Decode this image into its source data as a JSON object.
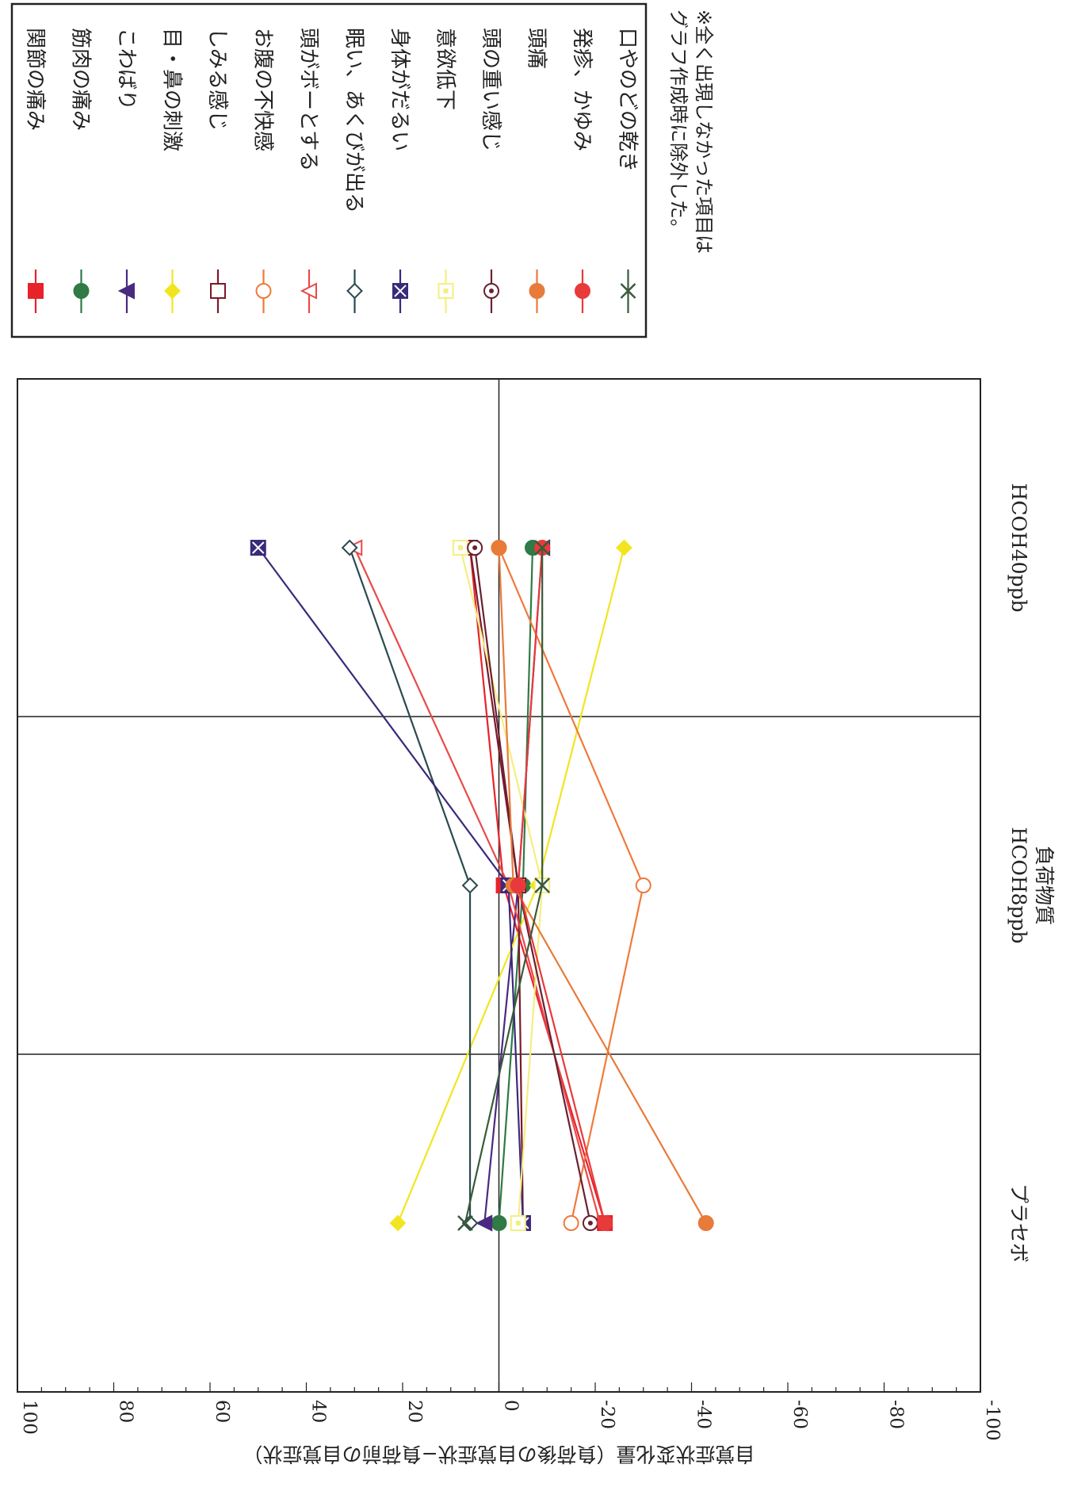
{
  "chart_data": {
    "type": "line",
    "orientation": "rotated-90",
    "categories": [
      "プラセボ",
      "HCOH8ppb",
      "HCOH40ppb"
    ],
    "xlabel": "負荷物質",
    "ylabel": "自覚症状変化量（負荷後の自覚症状−負荷前の自覚症状）",
    "ylim": [
      -100,
      100
    ],
    "yticks": [
      100,
      80,
      60,
      40,
      20,
      0,
      -20,
      -40,
      -60,
      -80,
      -100
    ],
    "grid": true,
    "legend_position": "top-right",
    "series": [
      {
        "name": "関節の痛み",
        "values": [
          -22,
          -1,
          6
        ],
        "color": "#e8222a",
        "marker": "square-filled"
      },
      {
        "name": "筋肉の痛み",
        "values": [
          0,
          -5,
          -7
        ],
        "color": "#2f7a45",
        "marker": "circle-filled"
      },
      {
        "name": "こわばり",
        "values": [
          3,
          -4,
          -9
        ],
        "color": "#4a2a80",
        "marker": "triangle-filled"
      },
      {
        "name": "目・鼻の刺激",
        "values": [
          21,
          -8,
          -26
        ],
        "color": "#f2e520",
        "marker": "diamond-filled"
      },
      {
        "name": "しみる感じ",
        "values": [
          -5,
          -4,
          6
        ],
        "color": "#7a1a2a",
        "marker": "square-open"
      },
      {
        "name": "お腹の不快感",
        "values": [
          -15,
          -30,
          0
        ],
        "color": "#f07a3a",
        "marker": "circle-open"
      },
      {
        "name": "頭がボーとする",
        "values": [
          -21,
          -2,
          30
        ],
        "color": "#e84a4a",
        "marker": "triangle-open"
      },
      {
        "name": "眠い、あくびが出る",
        "values": [
          6,
          6,
          31
        ],
        "color": "#2a4a50",
        "marker": "diamond-open"
      },
      {
        "name": "身体がだるい",
        "values": [
          -5,
          -2,
          50
        ],
        "color": "#3a2a7a",
        "marker": "square-x"
      },
      {
        "name": "意欲低下",
        "values": [
          -4,
          -9,
          8
        ],
        "color": "#f5ee80",
        "marker": "square-dot"
      },
      {
        "name": "頭の重い感じ",
        "values": [
          -19,
          -4,
          5
        ],
        "color": "#6a2030",
        "marker": "circle-dot"
      },
      {
        "name": "頭痛",
        "values": [
          -43,
          -3,
          0
        ],
        "color": "#e87a3a",
        "marker": "circle-filled-light"
      },
      {
        "name": "発疹、かゆみ",
        "values": [
          -22,
          -4,
          -9
        ],
        "color": "#e83a3a",
        "marker": "circle-filled-bright"
      },
      {
        "name": "口やのどの乾き",
        "values": [
          7,
          -9,
          -9
        ],
        "color": "#3a5a3a",
        "marker": "x-cross"
      }
    ],
    "note_lines": [
      "※全く出現しなかった項目は",
      "グラフ作成時に除外した。"
    ]
  }
}
